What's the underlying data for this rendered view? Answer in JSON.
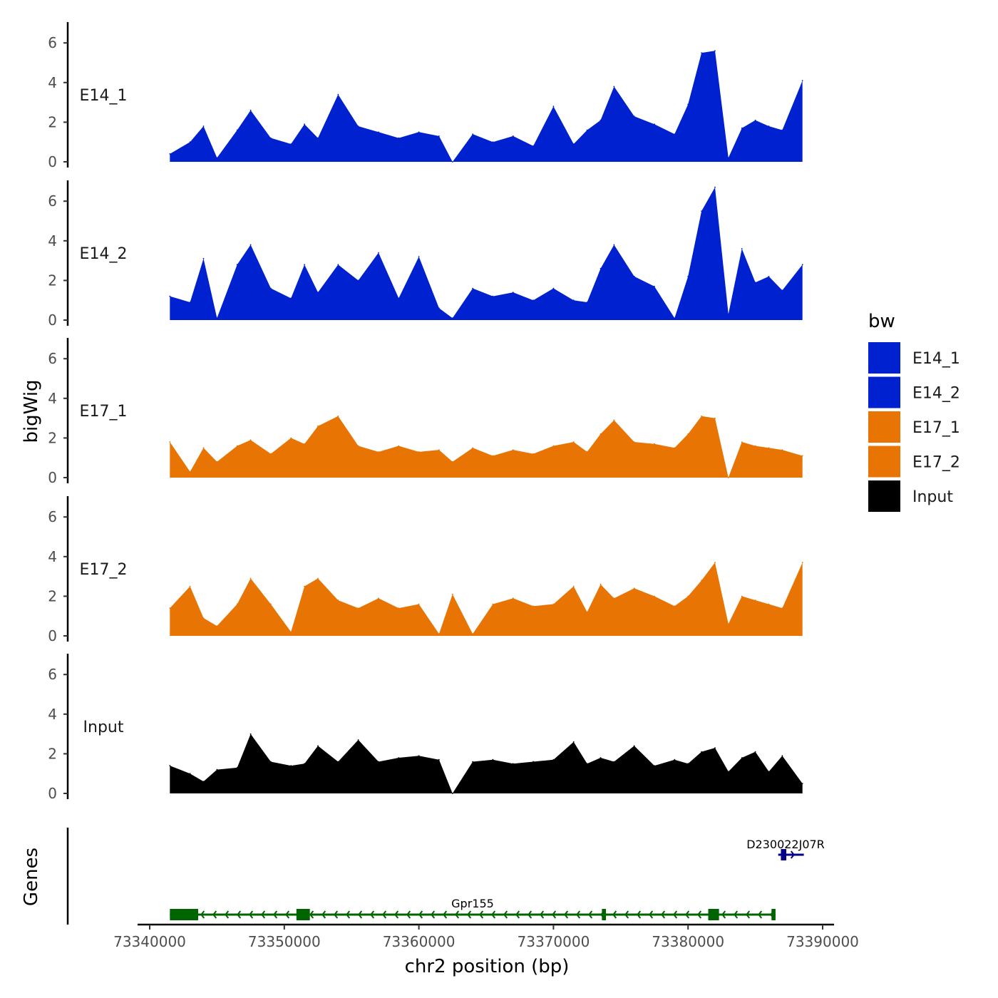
{
  "chart_data": {
    "type": "area",
    "title": "",
    "ylabel": "bigWig",
    "xlabel": "chr2 position (bp)",
    "genes_label": "Genes",
    "xlim": [
      73339000,
      73390500
    ],
    "ylim": [
      0,
      7
    ],
    "x_ticks": [
      73340000,
      73350000,
      73360000,
      73370000,
      73380000,
      73390000
    ],
    "x_tick_labels": [
      "73340000",
      "73350000",
      "73360000",
      "73370000",
      "73380000",
      "73390000"
    ],
    "y_ticks": [
      0,
      2,
      4,
      6
    ],
    "y_tick_labels": [
      "0",
      "2",
      "4",
      "6"
    ],
    "legend": {
      "title": "bw",
      "position": "right",
      "entries": [
        {
          "label": "E14_1",
          "color": "#0021CF"
        },
        {
          "label": "E14_2",
          "color": "#0021CF"
        },
        {
          "label": "E17_1",
          "color": "#E87503"
        },
        {
          "label": "E17_2",
          "color": "#E87503"
        },
        {
          "label": "Input",
          "color": "#000000"
        }
      ]
    },
    "x": [
      73341500,
      73343000,
      73344000,
      73345000,
      73346500,
      73347500,
      73349000,
      73350500,
      73351500,
      73352500,
      73354000,
      73355500,
      73357000,
      73358500,
      73360000,
      73361500,
      73362500,
      73364000,
      73365500,
      73367000,
      73368500,
      73370000,
      73371500,
      73372500,
      73373500,
      73374500,
      73376000,
      73377500,
      73379000,
      73380000,
      73381000,
      73382000,
      73383000,
      73384000,
      73385000,
      73386000,
      73387000,
      73388500
    ],
    "series": [
      {
        "name": "E14_1",
        "color": "#0021CF",
        "values": [
          0.4,
          1.0,
          1.8,
          0.2,
          1.6,
          2.6,
          1.2,
          0.9,
          1.9,
          1.2,
          3.4,
          1.8,
          1.5,
          1.2,
          1.5,
          1.3,
          0.0,
          1.4,
          1.0,
          1.3,
          0.8,
          2.8,
          0.9,
          1.6,
          2.1,
          3.8,
          2.3,
          1.9,
          1.4,
          2.9,
          5.5,
          5.6,
          0.2,
          1.7,
          2.1,
          1.8,
          1.6,
          4.1
        ]
      },
      {
        "name": "E14_2",
        "color": "#0021CF",
        "values": [
          1.2,
          0.9,
          3.1,
          0.1,
          2.8,
          3.8,
          1.6,
          1.1,
          2.8,
          1.4,
          2.8,
          2.0,
          3.4,
          1.1,
          3.2,
          0.6,
          0.1,
          1.6,
          1.2,
          1.4,
          1.0,
          1.6,
          1.0,
          0.9,
          2.6,
          3.8,
          2.2,
          1.7,
          0.1,
          2.2,
          5.5,
          6.7,
          0.3,
          3.6,
          1.9,
          2.2,
          1.5,
          2.8
        ]
      },
      {
        "name": "E17_1",
        "color": "#E87503",
        "values": [
          1.8,
          0.3,
          1.5,
          0.8,
          1.6,
          1.9,
          1.2,
          2.0,
          1.7,
          2.6,
          3.1,
          1.6,
          1.3,
          1.6,
          1.3,
          1.4,
          0.8,
          1.5,
          1.1,
          1.4,
          1.2,
          1.6,
          1.8,
          1.3,
          2.2,
          2.9,
          1.8,
          1.7,
          1.5,
          2.2,
          3.1,
          3.0,
          0.0,
          1.8,
          1.6,
          1.5,
          1.4,
          1.1
        ]
      },
      {
        "name": "E17_2",
        "color": "#E87503",
        "values": [
          1.4,
          2.5,
          0.9,
          0.5,
          1.6,
          2.9,
          1.6,
          0.2,
          2.5,
          2.9,
          1.8,
          1.4,
          1.9,
          1.4,
          1.6,
          0.1,
          2.1,
          0.1,
          1.6,
          1.9,
          1.5,
          1.6,
          2.5,
          1.2,
          2.6,
          1.9,
          2.4,
          2.0,
          1.5,
          2.0,
          2.8,
          3.7,
          0.6,
          2.0,
          1.8,
          1.6,
          1.4,
          3.7
        ]
      },
      {
        "name": "Input",
        "color": "#000000",
        "values": [
          1.4,
          1.0,
          0.6,
          1.2,
          1.3,
          3.0,
          1.6,
          1.4,
          1.5,
          2.4,
          1.6,
          2.7,
          1.6,
          1.8,
          1.9,
          1.7,
          0.0,
          1.6,
          1.7,
          1.5,
          1.6,
          1.7,
          2.6,
          1.5,
          1.8,
          1.6,
          2.4,
          1.4,
          1.7,
          1.5,
          2.1,
          2.3,
          1.1,
          1.8,
          2.1,
          1.1,
          1.9,
          0.5
        ]
      }
    ],
    "genes": [
      {
        "name": "Gpr155",
        "start": 73341500,
        "end": 73386500,
        "strand": "-",
        "color": "#006400",
        "exons": [
          [
            73341500,
            73343600
          ],
          [
            73350900,
            73351900
          ],
          [
            73373600,
            73373900
          ],
          [
            73381500,
            73382300
          ],
          [
            73386200,
            73386500
          ]
        ]
      },
      {
        "name": "D230022J07Rik",
        "display_name": "D230022J07R",
        "start": 73386700,
        "end": 73388600,
        "strand": "+",
        "color": "#00008B",
        "exons": [
          [
            73386900,
            73387300
          ]
        ]
      }
    ]
  }
}
